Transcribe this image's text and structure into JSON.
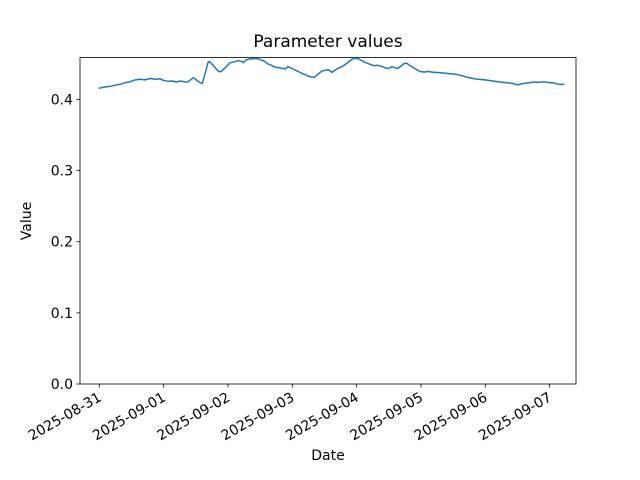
{
  "chart_data": {
    "type": "line",
    "title": "Parameter values",
    "xlabel": "Date",
    "ylabel": "Value",
    "grid": false,
    "legend": false,
    "background_color": "#ffffff",
    "spine_color": "#000000",
    "x_unit": "days since 2025-08-31 00:00",
    "xlim_days": [
      -0.3,
      7.41
    ],
    "ylim": [
      0,
      0.459
    ],
    "x_ticks": {
      "days": [
        0,
        1,
        2,
        3,
        4,
        5,
        6,
        7
      ],
      "labels": [
        "2025-08-31",
        "2025-09-01",
        "2025-09-02",
        "2025-09-03",
        "2025-09-04",
        "2025-09-05",
        "2025-09-06",
        "2025-09-07"
      ],
      "rotation_deg": 30
    },
    "y_ticks": {
      "values": [
        0.0,
        0.1,
        0.2,
        0.3,
        0.4
      ],
      "labels": [
        "0.0",
        "0.1",
        "0.2",
        "0.3",
        "0.4"
      ]
    },
    "series": [
      {
        "name": "parameter-values",
        "color": "#1f77b4",
        "line_width": 1.5,
        "x_days": [
          0.0,
          0.09,
          0.17,
          0.25,
          0.33,
          0.4,
          0.48,
          0.56,
          0.64,
          0.71,
          0.79,
          0.87,
          0.95,
          0.99,
          1.07,
          1.13,
          1.2,
          1.26,
          1.32,
          1.37,
          1.41,
          1.46,
          1.51,
          1.55,
          1.6,
          1.65,
          1.69,
          1.71,
          1.77,
          1.85,
          1.89,
          1.97,
          2.03,
          2.1,
          2.16,
          2.22,
          2.24,
          2.28,
          2.34,
          2.41,
          2.47,
          2.53,
          2.58,
          2.62,
          2.69,
          2.73,
          2.78,
          2.84,
          2.89,
          2.93,
          3.0,
          3.04,
          3.09,
          3.15,
          3.2,
          3.26,
          3.31,
          3.35,
          3.4,
          3.46,
          3.51,
          3.56,
          3.62,
          3.67,
          3.73,
          3.77,
          3.82,
          3.87,
          3.91,
          3.96,
          4.01,
          4.05,
          4.1,
          4.15,
          4.21,
          4.27,
          4.33,
          4.39,
          4.44,
          4.49,
          4.55,
          4.6,
          4.64,
          4.69,
          4.74,
          4.78,
          4.83,
          4.88,
          4.94,
          4.98,
          5.05,
          5.11,
          5.17,
          5.23,
          5.3,
          5.36,
          5.42,
          5.48,
          5.54,
          5.61,
          5.67,
          5.73,
          5.81,
          5.89,
          5.96,
          6.04,
          6.12,
          6.2,
          6.27,
          6.35,
          6.43,
          6.51,
          6.57,
          6.63,
          6.69,
          6.75,
          6.82,
          6.88,
          6.94,
          7.0,
          7.06,
          7.13,
          7.17,
          7.22
        ],
        "values": [
          0.416,
          0.4175,
          0.4185,
          0.42,
          0.4215,
          0.4235,
          0.425,
          0.4275,
          0.4285,
          0.4275,
          0.4295,
          0.4285,
          0.429,
          0.427,
          0.4255,
          0.426,
          0.4245,
          0.426,
          0.425,
          0.4245,
          0.427,
          0.4305,
          0.4275,
          0.4245,
          0.4225,
          0.438,
          0.452,
          0.4535,
          0.448,
          0.4395,
          0.439,
          0.4455,
          0.4515,
          0.453,
          0.4545,
          0.4535,
          0.4515,
          0.4555,
          0.457,
          0.4575,
          0.457,
          0.455,
          0.453,
          0.45,
          0.4475,
          0.4455,
          0.445,
          0.4435,
          0.443,
          0.446,
          0.4435,
          0.4415,
          0.4395,
          0.4365,
          0.435,
          0.4325,
          0.4315,
          0.4315,
          0.4355,
          0.44,
          0.441,
          0.4415,
          0.438,
          0.4415,
          0.4445,
          0.446,
          0.449,
          0.4525,
          0.4555,
          0.458,
          0.4575,
          0.456,
          0.4535,
          0.4515,
          0.4495,
          0.4475,
          0.448,
          0.4465,
          0.4445,
          0.4435,
          0.446,
          0.4445,
          0.4435,
          0.447,
          0.4505,
          0.451,
          0.4475,
          0.445,
          0.4415,
          0.4395,
          0.4385,
          0.4395,
          0.4385,
          0.438,
          0.4375,
          0.437,
          0.4365,
          0.436,
          0.4355,
          0.434,
          0.4325,
          0.431,
          0.4295,
          0.4285,
          0.428,
          0.427,
          0.426,
          0.425,
          0.424,
          0.4235,
          0.4225,
          0.4205,
          0.422,
          0.423,
          0.4235,
          0.4245,
          0.424,
          0.4245,
          0.4245,
          0.4235,
          0.4235,
          0.4215,
          0.421,
          0.4215
        ]
      }
    ]
  }
}
